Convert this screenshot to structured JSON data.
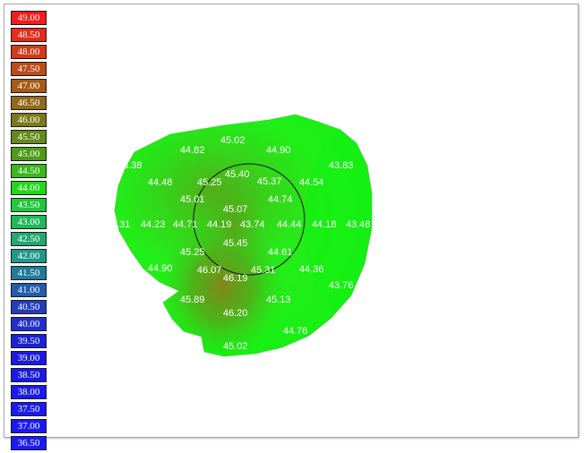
{
  "legend": {
    "items": [
      {
        "label": "49.00",
        "color": "#ff1a1a"
      },
      {
        "label": "48.50",
        "color": "#e82a1a"
      },
      {
        "label": "48.00",
        "color": "#d23a1a"
      },
      {
        "label": "47.50",
        "color": "#bc4a1a"
      },
      {
        "label": "47.00",
        "color": "#a65a1a"
      },
      {
        "label": "46.50",
        "color": "#906a1a"
      },
      {
        "label": "46.00",
        "color": "#7a7a1a"
      },
      {
        "label": "45.50",
        "color": "#648a1a"
      },
      {
        "label": "45.00",
        "color": "#4e9a1a"
      },
      {
        "label": "44.50",
        "color": "#38b81a"
      },
      {
        "label": "44.00",
        "color": "#22d81a"
      },
      {
        "label": "43.50",
        "color": "#22c83a"
      },
      {
        "label": "43.00",
        "color": "#22b85a"
      },
      {
        "label": "42.50",
        "color": "#22a872"
      },
      {
        "label": "42.00",
        "color": "#22988a"
      },
      {
        "label": "41.50",
        "color": "#227a9a"
      },
      {
        "label": "41.00",
        "color": "#225caa"
      },
      {
        "label": "40.50",
        "color": "#223eba"
      },
      {
        "label": "40.00",
        "color": "#2230c8"
      },
      {
        "label": "39.50",
        "color": "#1a22d8"
      },
      {
        "label": "39.00",
        "color": "#1a1ae0"
      },
      {
        "label": "38.50",
        "color": "#1a1ae8"
      },
      {
        "label": "38.00",
        "color": "#1a1aee"
      },
      {
        "label": "37.50",
        "color": "#1a1af2"
      },
      {
        "label": "37.00",
        "color": "#1a1af6"
      },
      {
        "label": "36.50",
        "color": "#1a1afa"
      }
    ]
  },
  "map": {
    "values": [
      {
        "label": "45.02"
      },
      {
        "label": "44.82"
      },
      {
        "label": "44.90"
      },
      {
        "label": "43.38"
      },
      {
        "label": "43.83"
      },
      {
        "label": "45.40"
      },
      {
        "label": "44.48"
      },
      {
        "label": "45.25"
      },
      {
        "label": "45.37"
      },
      {
        "label": "44.54"
      },
      {
        "label": "45.01"
      },
      {
        "label": "44.74"
      },
      {
        "label": "45.07"
      },
      {
        "label": "43.31"
      },
      {
        "label": "44.23"
      },
      {
        "label": "44.71"
      },
      {
        "label": "44.19"
      },
      {
        "label": "43.74"
      },
      {
        "label": "44.44"
      },
      {
        "label": "44.18"
      },
      {
        "label": "43.48"
      },
      {
        "label": "45.45"
      },
      {
        "label": "45.25"
      },
      {
        "label": "44.61"
      },
      {
        "label": "44.90"
      },
      {
        "label": "46.07"
      },
      {
        "label": "45.31"
      },
      {
        "label": "44.36"
      },
      {
        "label": "46.19"
      },
      {
        "label": "43.76"
      },
      {
        "label": "45.89"
      },
      {
        "label": "45.13"
      },
      {
        "label": "46.20"
      },
      {
        "label": "44.76"
      },
      {
        "label": "45.02"
      }
    ]
  }
}
